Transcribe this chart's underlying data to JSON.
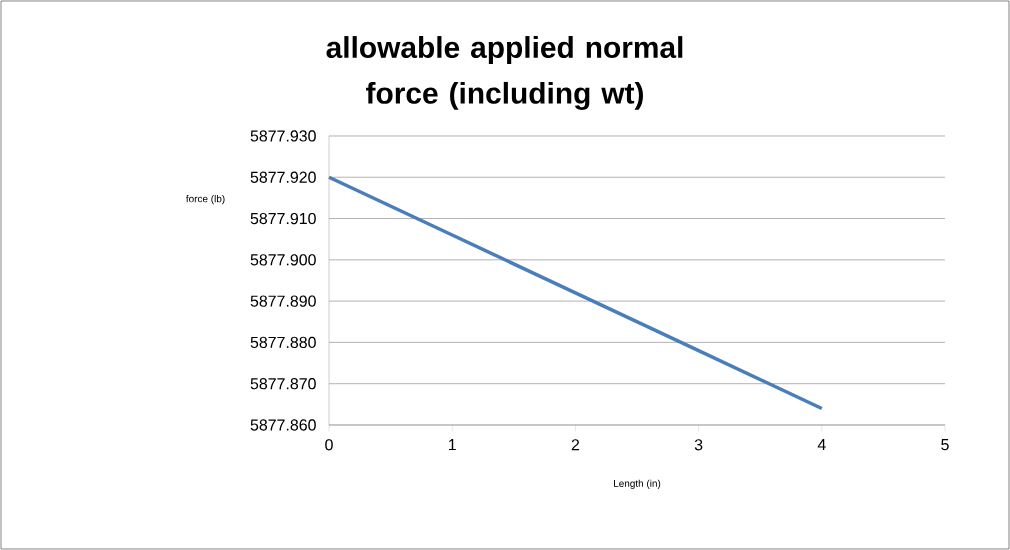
{
  "chart_data": {
    "type": "line",
    "title": "allowable applied normal force (including wt)",
    "xlabel": "Length (in)",
    "ylabel": "force (lb)",
    "x": [
      0,
      1,
      2,
      3,
      4
    ],
    "series": [
      {
        "color": "#4a7ebb",
        "values": [
          5877.92,
          5877.906,
          5877.892,
          5877.878,
          5877.864
        ]
      }
    ],
    "xlim": [
      0,
      5
    ],
    "xticks": [
      0,
      1,
      2,
      3,
      4,
      5
    ],
    "ylim": [
      5877.86,
      5877.93
    ],
    "yticks": [
      {
        "value": 5877.86,
        "label": "5877.860"
      },
      {
        "value": 5877.87,
        "label": "5877.870"
      },
      {
        "value": 5877.88,
        "label": "5877.880"
      },
      {
        "value": 5877.89,
        "label": "5877.890"
      },
      {
        "value": 5877.9,
        "label": "5877.900"
      },
      {
        "value": 5877.91,
        "label": "5877.910"
      },
      {
        "value": 5877.92,
        "label": "5877.920"
      },
      {
        "value": 5877.93,
        "label": "5877.930"
      }
    ],
    "grid": "y",
    "marker": "none",
    "line_style": "solid"
  }
}
